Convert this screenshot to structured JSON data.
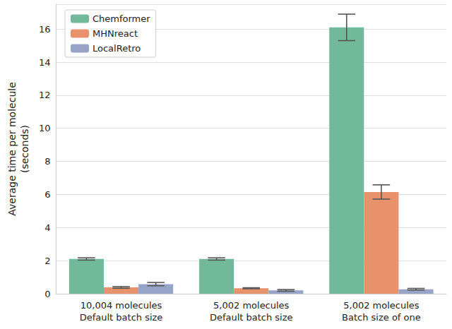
{
  "chart_data": {
    "type": "bar",
    "y_label": "Average time per molecule\n(seconds)",
    "categories": [
      "10,004 molecules\nDefault batch size",
      "5,002 molecules\nDefault batch size",
      "5,002 molecules\nBatch size of one"
    ],
    "series": [
      {
        "name": "Chemformer",
        "color": "#72b89b",
        "values": [
          2.1,
          2.1,
          16.1
        ],
        "errors": [
          0.07,
          0.07,
          0.8
        ]
      },
      {
        "name": "MHNreact",
        "color": "#e8926b",
        "values": [
          0.38,
          0.33,
          6.15
        ],
        "errors": [
          0.05,
          0.03,
          0.43
        ]
      },
      {
        "name": "LocalRetro",
        "color": "#97a4c7",
        "values": [
          0.58,
          0.2,
          0.27
        ],
        "errors": [
          0.1,
          0.05,
          0.05
        ]
      }
    ],
    "ylim": [
      0,
      17.5
    ],
    "yticks": [
      0,
      2,
      4,
      6,
      8,
      10,
      12,
      14,
      16
    ],
    "grid": true,
    "legend": "upper left"
  }
}
